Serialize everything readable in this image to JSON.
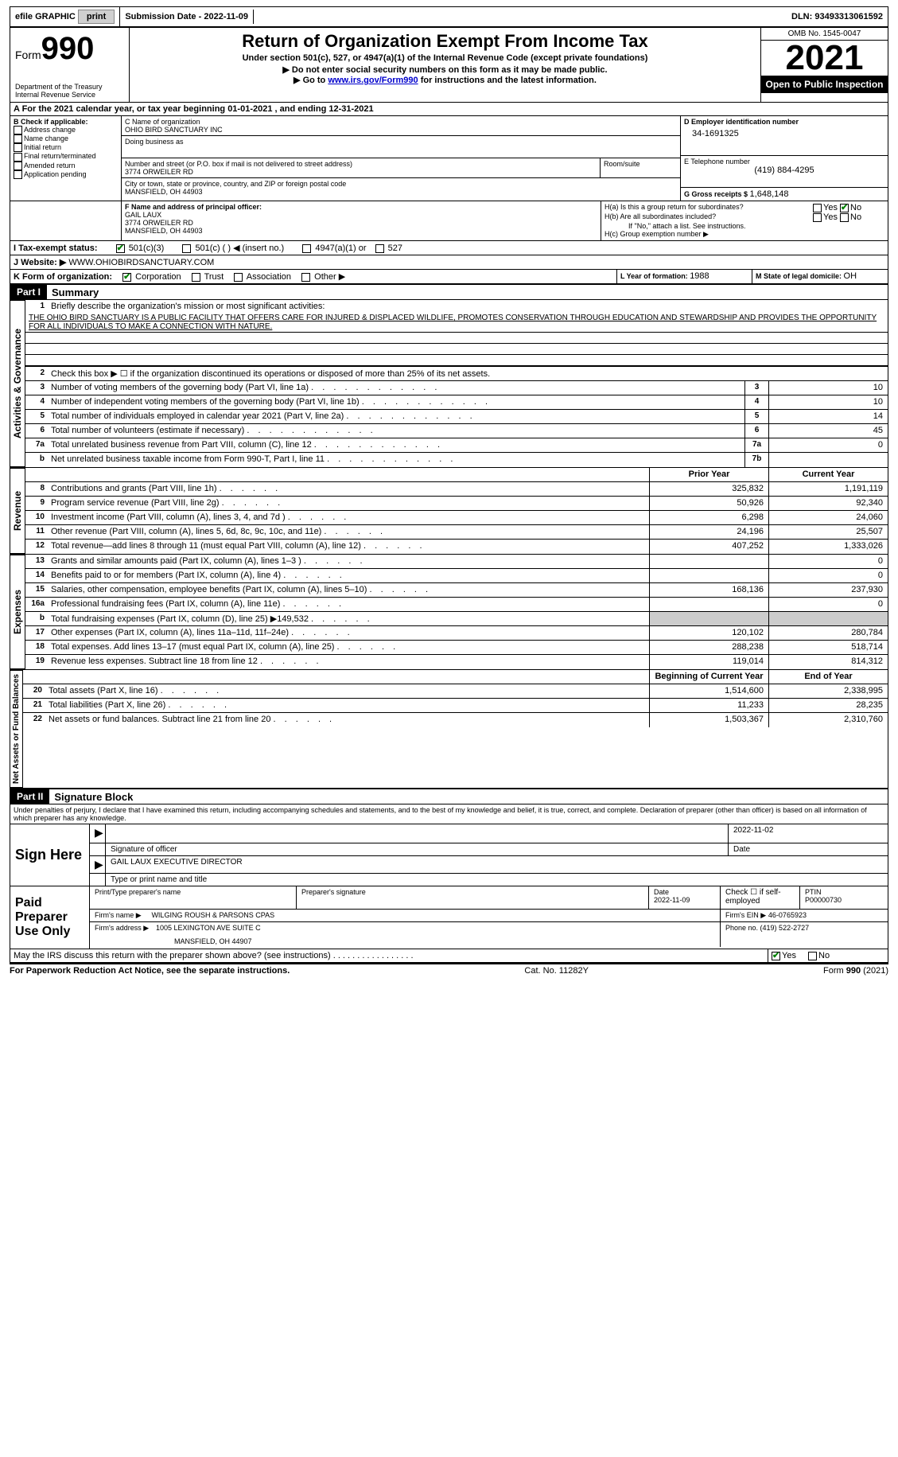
{
  "top": {
    "efile": "efile GRAPHIC",
    "print": "print",
    "sub_label": "Submission Date - ",
    "sub_date": "2022-11-09",
    "dln_label": "DLN: ",
    "dln": "93493313061592"
  },
  "header": {
    "form_word": "Form",
    "form_num": "990",
    "dept": "Department of the Treasury",
    "irs": "Internal Revenue Service",
    "title": "Return of Organization Exempt From Income Tax",
    "sub1": "Under section 501(c), 527, or 4947(a)(1) of the Internal Revenue Code (except private foundations)",
    "sub2": "▶ Do not enter social security numbers on this form as it may be made public.",
    "sub3_pre": "▶ Go to ",
    "sub3_link": "www.irs.gov/Form990",
    "sub3_post": " for instructions and the latest information.",
    "omb": "OMB No. 1545-0047",
    "year": "2021",
    "open": "Open to Public Inspection"
  },
  "periodA": "A For the 2021 calendar year, or tax year beginning 01-01-2021     , and ending 12-31-2021",
  "boxB": {
    "label": "B Check if applicable:",
    "opts": [
      "Address change",
      "Name change",
      "Initial return",
      "Final return/terminated",
      "Amended return",
      "Application pending"
    ]
  },
  "boxC": {
    "label": "C Name of organization",
    "name": "OHIO BIRD SANCTUARY INC",
    "dba_label": "Doing business as",
    "dba": "",
    "addr_label": "Number and street (or P.O. box if mail is not delivered to street address)",
    "room_label": "Room/suite",
    "addr": "3774 ORWEILER RD",
    "city_label": "City or town, state or province, country, and ZIP or foreign postal code",
    "city": "MANSFIELD, OH  44903"
  },
  "boxD": {
    "label": "D Employer identification number",
    "val": "34-1691325"
  },
  "boxE": {
    "label": "E Telephone number",
    "val": "(419) 884-4295"
  },
  "boxG": {
    "label": "G Gross receipts $ ",
    "val": "1,648,148"
  },
  "boxF": {
    "label": "F  Name and address of principal officer:",
    "name": "GAIL LAUX",
    "addr": "3774 ORWEILER RD",
    "city": "MANSFIELD, OH  44903"
  },
  "boxH": {
    "a": "H(a)  Is this a group return for subordinates?",
    "b": "H(b)  Are all subordinates included?",
    "b_note": "If \"No,\" attach a list. See instructions.",
    "c": "H(c)  Group exemption number ▶",
    "yes": "Yes",
    "no": "No"
  },
  "boxI": {
    "label": "I   Tax-exempt status:",
    "o1": "501(c)(3)",
    "o2": "501(c) (   ) ◀ (insert no.)",
    "o3": "4947(a)(1) or",
    "o4": "527"
  },
  "boxJ": {
    "label": "J   Website: ▶ ",
    "val": "WWW.OHIOBIRDSANCTUARY.COM"
  },
  "boxK": {
    "label": "K Form of organization:",
    "opts": [
      "Corporation",
      "Trust",
      "Association",
      "Other ▶"
    ]
  },
  "boxL": {
    "label": "L Year of formation: ",
    "val": "1988"
  },
  "boxM": {
    "label": "M State of legal domicile: ",
    "val": "OH"
  },
  "part1": {
    "num": "Part I",
    "title": "Summary"
  },
  "sideLabels": {
    "activities": "Activities & Governance",
    "revenue": "Revenue",
    "expenses": "Expenses",
    "netassets": "Net Assets or Fund Balances"
  },
  "mission_label": "Briefly describe the organization's mission or most significant activities:",
  "mission": "THE OHIO BIRD SANCTUARY IS A PUBLIC FACILITY THAT OFFERS CARE FOR INJURED & DISPLACED WILDLIFE, PROMOTES CONSERVATION THROUGH EDUCATION AND STEWARDSHIP AND PROVIDES THE OPPORTUNITY FOR ALL INDIVIDUALS TO MAKE A CONNECTION WITH NATURE.",
  "line2": "Check this box ▶ ☐  if the organization discontinued its operations or disposed of more than 25% of its net assets.",
  "lines_top": [
    {
      "n": "3",
      "d": "Number of voting members of the governing body (Part VI, line 1a)",
      "box": "3",
      "v": "10"
    },
    {
      "n": "4",
      "d": "Number of independent voting members of the governing body (Part VI, line 1b)",
      "box": "4",
      "v": "10"
    },
    {
      "n": "5",
      "d": "Total number of individuals employed in calendar year 2021 (Part V, line 2a)",
      "box": "5",
      "v": "14"
    },
    {
      "n": "6",
      "d": "Total number of volunteers (estimate if necessary)",
      "box": "6",
      "v": "45"
    },
    {
      "n": "7a",
      "d": "Total unrelated business revenue from Part VIII, column (C), line 12",
      "box": "7a",
      "v": "0"
    },
    {
      "n": "b",
      "d": "Net unrelated business taxable income from Form 990-T, Part I, line 11",
      "box": "7b",
      "v": ""
    }
  ],
  "col_prior": "Prior Year",
  "col_curr": "Current Year",
  "revenue_lines": [
    {
      "n": "8",
      "d": "Contributions and grants (Part VIII, line 1h)",
      "p": "325,832",
      "c": "1,191,119"
    },
    {
      "n": "9",
      "d": "Program service revenue (Part VIII, line 2g)",
      "p": "50,926",
      "c": "92,340"
    },
    {
      "n": "10",
      "d": "Investment income (Part VIII, column (A), lines 3, 4, and 7d )",
      "p": "6,298",
      "c": "24,060"
    },
    {
      "n": "11",
      "d": "Other revenue (Part VIII, column (A), lines 5, 6d, 8c, 9c, 10c, and 11e)",
      "p": "24,196",
      "c": "25,507"
    },
    {
      "n": "12",
      "d": "Total revenue—add lines 8 through 11 (must equal Part VIII, column (A), line 12)",
      "p": "407,252",
      "c": "1,333,026"
    }
  ],
  "expense_lines": [
    {
      "n": "13",
      "d": "Grants and similar amounts paid (Part IX, column (A), lines 1–3 )",
      "p": "",
      "c": "0"
    },
    {
      "n": "14",
      "d": "Benefits paid to or for members (Part IX, column (A), line 4)",
      "p": "",
      "c": "0"
    },
    {
      "n": "15",
      "d": "Salaries, other compensation, employee benefits (Part IX, column (A), lines 5–10)",
      "p": "168,136",
      "c": "237,930"
    },
    {
      "n": "16a",
      "d": "Professional fundraising fees (Part IX, column (A), line 11e)",
      "p": "",
      "c": "0"
    },
    {
      "n": "b",
      "d": "Total fundraising expenses (Part IX, column (D), line 25) ▶149,532",
      "p": "shaded",
      "c": "shaded"
    },
    {
      "n": "17",
      "d": "Other expenses (Part IX, column (A), lines 11a–11d, 11f–24e)",
      "p": "120,102",
      "c": "280,784"
    },
    {
      "n": "18",
      "d": "Total expenses. Add lines 13–17 (must equal Part IX, column (A), line 25)",
      "p": "288,238",
      "c": "518,714"
    },
    {
      "n": "19",
      "d": "Revenue less expenses. Subtract line 18 from line 12",
      "p": "119,014",
      "c": "814,312"
    }
  ],
  "col_boy": "Beginning of Current Year",
  "col_eoy": "End of Year",
  "net_lines": [
    {
      "n": "20",
      "d": "Total assets (Part X, line 16)",
      "p": "1,514,600",
      "c": "2,338,995"
    },
    {
      "n": "21",
      "d": "Total liabilities (Part X, line 26)",
      "p": "11,233",
      "c": "28,235"
    },
    {
      "n": "22",
      "d": "Net assets or fund balances. Subtract line 21 from line 20",
      "p": "1,503,367",
      "c": "2,310,760"
    }
  ],
  "part2": {
    "num": "Part II",
    "title": "Signature Block"
  },
  "penalties": "Under penalties of perjury, I declare that I have examined this return, including accompanying schedules and statements, and to the best of my knowledge and belief, it is true, correct, and complete. Declaration of preparer (other than officer) is based on all information of which preparer has any knowledge.",
  "sign": {
    "here": "Sign Here",
    "sig_officer": "Signature of officer",
    "sig_date": "2022-11-02",
    "date_label": "Date",
    "name": "GAIL LAUX  EXECUTIVE DIRECTOR",
    "name_label": "Type or print name and title"
  },
  "paid": {
    "title": "Paid Preparer Use Only",
    "prep_name_label": "Print/Type preparer's name",
    "prep_sig_label": "Preparer's signature",
    "date_label": "Date",
    "date": "2022-11-09",
    "check_label": "Check ☐ if self-employed",
    "ptin_label": "PTIN",
    "ptin": "P00000730",
    "firm_name_label": "Firm's name     ▶",
    "firm_name": "WILGING ROUSH & PARSONS CPAS",
    "firm_ein_label": "Firm's EIN ▶",
    "firm_ein": "46-0765923",
    "firm_addr_label": "Firm's address ▶",
    "firm_addr1": "1005 LEXINGTON AVE SUITE C",
    "firm_addr2": "MANSFIELD, OH  44907",
    "phone_label": "Phone no. ",
    "phone": "(419) 522-2727"
  },
  "discuss": "May the IRS discuss this return with the preparer shown above? (see instructions)",
  "discuss_yes": "Yes",
  "discuss_no": "No",
  "footer": {
    "left": "For Paperwork Reduction Act Notice, see the separate instructions.",
    "mid": "Cat. No. 11282Y",
    "right": "Form 990 (2021)"
  }
}
